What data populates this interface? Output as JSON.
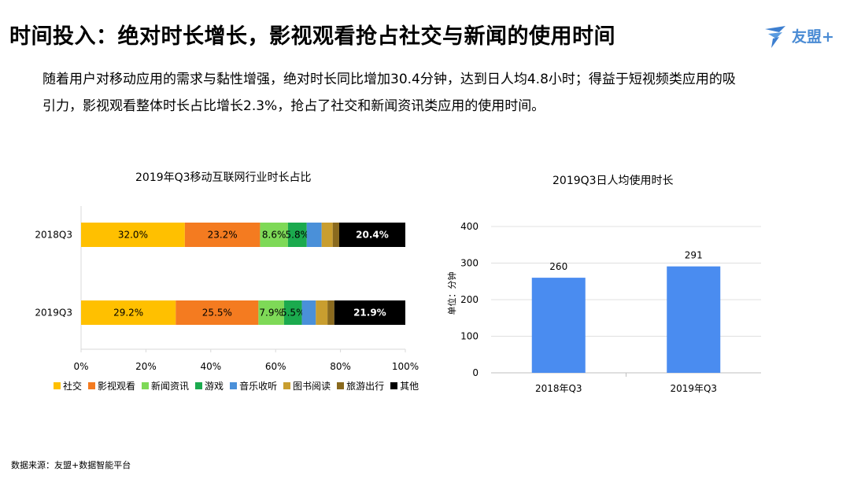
{
  "header": {
    "title": "时间投入：绝对时长增长，影视观看抢占社交与新闻的使用时间",
    "logo_text": "友盟+"
  },
  "description": {
    "line1": "随着用户对移动应用的需求与黏性增强，绝对时长同比增加30.4分钟，达到日人均4.8小时；得益于短视频类应用的吸",
    "line2": "引力，影视观看整体时长占比增长2.3%，抢占了社交和新闻资讯类应用的使用时间。"
  },
  "footer": {
    "source": "数据来源：友盟+数据智能平台"
  },
  "colors": {
    "social": "#FFC000",
    "video": "#F47B20",
    "news": "#7ED957",
    "game": "#1BAA4E",
    "music": "#4A90D9",
    "reading": "#C99E2F",
    "travel": "#8A6A1E",
    "other": "#000000",
    "bar_blue": "#4A8CF0"
  },
  "chart_data": [
    {
      "type": "bar",
      "orientation": "horizontal",
      "stacked": true,
      "title": "2019年Q3移动互联网行业时长占比",
      "categories": [
        "2018Q3",
        "2019Q3"
      ],
      "xlim": [
        0,
        100
      ],
      "xticks": [
        "0%",
        "20%",
        "40%",
        "60%",
        "80%",
        "100%"
      ],
      "legend_position": "bottom",
      "series": [
        {
          "name": "社交",
          "key": "social",
          "values": [
            32.0,
            29.2
          ],
          "labels": [
            "32.0%",
            "29.2%"
          ]
        },
        {
          "name": "影视观看",
          "key": "video",
          "values": [
            23.2,
            25.5
          ],
          "labels": [
            "23.2%",
            "25.5%"
          ]
        },
        {
          "name": "新闻资讯",
          "key": "news",
          "values": [
            8.6,
            7.9
          ],
          "labels": [
            "8.6%",
            "7.9%"
          ]
        },
        {
          "name": "游戏",
          "key": "game",
          "values": [
            5.8,
            5.5
          ],
          "labels": [
            "5.8%",
            "5.5%"
          ]
        },
        {
          "name": "音乐收听",
          "key": "music",
          "values": [
            4.6,
            4.3
          ],
          "labels": [
            "",
            ""
          ]
        },
        {
          "name": "图书阅读",
          "key": "reading",
          "values": [
            3.4,
            3.6
          ],
          "labels": [
            "",
            ""
          ]
        },
        {
          "name": "旅游出行",
          "key": "travel",
          "values": [
            2.0,
            2.1
          ],
          "labels": [
            "",
            ""
          ]
        },
        {
          "name": "其他",
          "key": "other",
          "values": [
            20.4,
            21.9
          ],
          "labels": [
            "20.4%",
            "21.9%"
          ]
        }
      ]
    },
    {
      "type": "bar",
      "title": "2019Q3日人均使用时长",
      "ylabel": "单位：分钟",
      "categories": [
        "2018年Q3",
        "2019年Q3"
      ],
      "values": [
        260,
        291
      ],
      "ylim": [
        0,
        400
      ],
      "yticks": [
        0,
        100,
        200,
        300,
        400
      ],
      "grid": true
    }
  ]
}
